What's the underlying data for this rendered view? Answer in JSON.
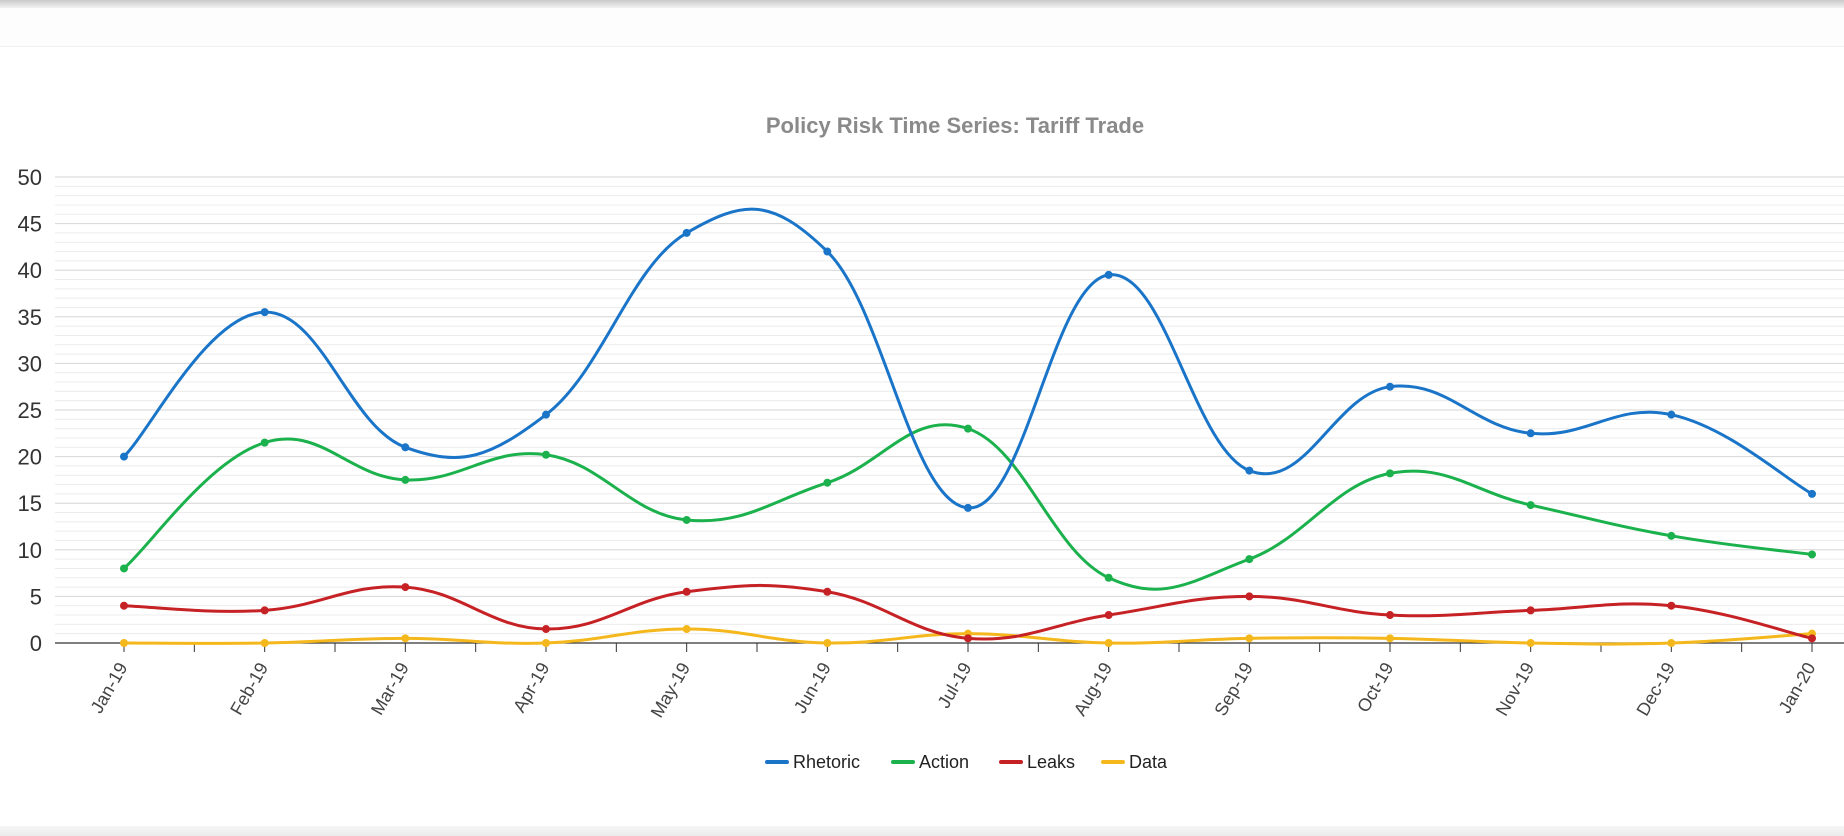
{
  "chart_data": {
    "type": "line",
    "title": "Policy Risk Time Series: Tariff Trade",
    "categories": [
      "Jan-19",
      "Feb-19",
      "Mar-19",
      "Apr-19",
      "May-19",
      "Jun-19",
      "Jul-19",
      "Aug-19",
      "Sep-19",
      "Oct-19",
      "Nov-19",
      "Dec-19",
      "Jan-20"
    ],
    "ylim": [
      0,
      50
    ],
    "yticks": [
      0,
      5,
      10,
      15,
      20,
      25,
      30,
      35,
      40,
      45,
      50
    ],
    "grid": true,
    "legend_position": "bottom",
    "series": [
      {
        "name": "Rhetoric",
        "color": "#1a75c9",
        "values": [
          20,
          35.5,
          21,
          24.5,
          44,
          42,
          14.5,
          39.5,
          18.5,
          27.5,
          22.5,
          24.5,
          16
        ]
      },
      {
        "name": "Action",
        "color": "#1bb14c",
        "values": [
          8,
          21.5,
          17.5,
          20.2,
          13.2,
          17.2,
          23,
          7,
          9,
          18.2,
          14.8,
          11.5,
          9.5
        ]
      },
      {
        "name": "Leaks",
        "color": "#c62124",
        "values": [
          4,
          3.5,
          6,
          1.5,
          5.5,
          5.5,
          0.5,
          3,
          5,
          3,
          3.5,
          4,
          0.5
        ]
      },
      {
        "name": "Data",
        "color": "#f5b81c",
        "values": [
          0,
          0,
          0.5,
          0,
          1.5,
          0,
          1,
          0,
          0.5,
          0.5,
          0,
          0,
          1
        ]
      }
    ]
  }
}
